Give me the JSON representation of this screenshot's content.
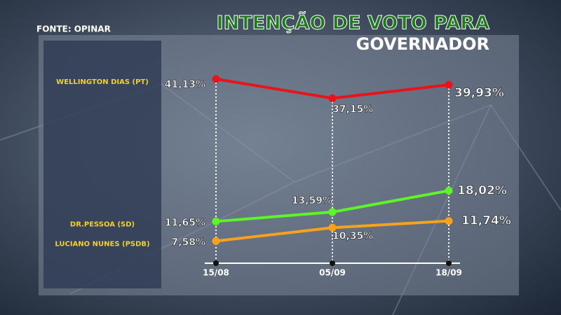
{
  "chart_data": {
    "type": "line",
    "title": "INTENÇÃO DE VOTO PARA",
    "subtitle": "GOVERNADOR",
    "source": "FONTE: OPINAR",
    "categories": [
      "15/08",
      "05/09",
      "18/09"
    ],
    "ylim": [
      3,
      43
    ],
    "series": [
      {
        "name": "WELLINGTON DIAS (PT)",
        "color": "#e8141c",
        "values": [
          41.13,
          37.15,
          39.93
        ],
        "value_labels": [
          "41,13%",
          "37,15%",
          "39,93%"
        ]
      },
      {
        "name": "DR.PESSOA (SD)",
        "color": "#5ef526",
        "values": [
          11.65,
          13.59,
          18.02
        ],
        "value_labels": [
          "11,65%",
          "13,59%",
          "18,02%"
        ]
      },
      {
        "name": "LUCIANO NUNES  (PSDB)",
        "color": "#f7a21b",
        "values": [
          7.58,
          10.35,
          11.74
        ],
        "value_labels": [
          "7,58%",
          "10,35%",
          "11,74%"
        ]
      }
    ]
  }
}
